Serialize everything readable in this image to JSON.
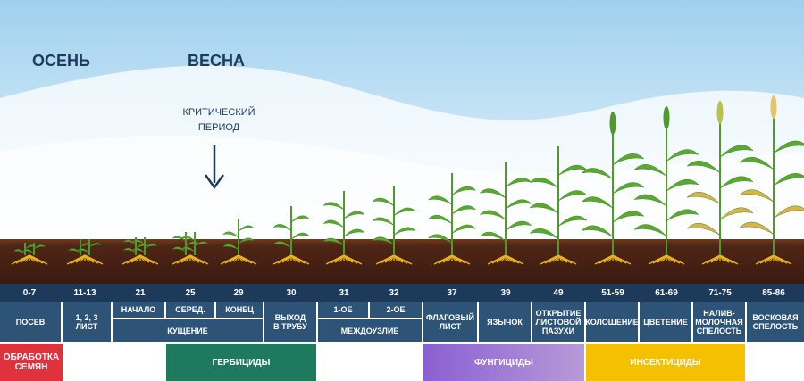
{
  "header": {
    "autumn": "ОСЕНЬ",
    "spring": "ВЕСНА",
    "critical_period": "КРИТИЧЕСКИЙ\nПЕРИОД"
  },
  "codes": [
    "0-7",
    "11-13",
    "21",
    "25",
    "29",
    "30",
    "31",
    "32",
    "37",
    "39",
    "49",
    "51-59",
    "61-69",
    "71-75",
    "85-86"
  ],
  "stages": [
    "ПОСЕВ",
    "1, 2, 3\nЛИСТ",
    "НАЧАЛО",
    "СЕРЕД.",
    "КОНЕЦ",
    "КУЩЕНИЕ",
    "ВЫХОД\nВ ТРУБУ",
    "1-ОЕ",
    "2-ОЕ",
    "МЕЖДОУЗЛИЕ",
    "ФЛАГОВЫЙ\nЛИСТ",
    "ЯЗЫЧОК",
    "ОТКРЫТИЕ\nЛИСТОВОЙ\nПАЗУХИ",
    "КОЛОШЕНИЕ",
    "ЦВЕТЕНИЕ",
    "НАЛИВ-\nМОЛОЧНАЯ\nСПЕЛОСТЬ",
    "ВОСКОВАЯ\nСПЕЛОСТЬ"
  ],
  "treatments": [
    "ОБРАБОТКА\nСЕМЯН",
    "ГЕРБИЦИДЫ",
    "ФУНГИЦИДЫ",
    "ИНСЕКТИЦИДЫ"
  ]
}
